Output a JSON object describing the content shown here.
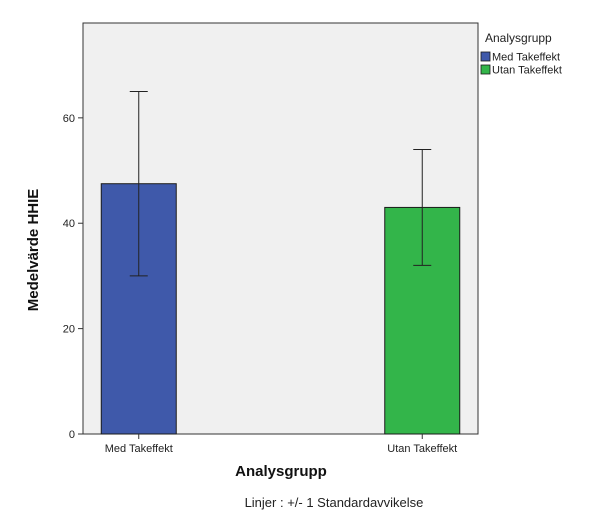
{
  "chart_data": {
    "type": "bar",
    "categories": [
      "Med Takeffekt",
      "Utan Takeffekt"
    ],
    "values": [
      47.5,
      43.0
    ],
    "error_bars": {
      "type": "+/- 1 SD",
      "lower": [
        30.0,
        32.0
      ],
      "upper": [
        65.0,
        54.0
      ]
    },
    "colors": [
      "#3f59aa",
      "#33b54a"
    ],
    "background": "#f0f0f0",
    "xlabel": "Analysgrupp",
    "ylabel": "Medelvärde HHIE",
    "yticks": [
      0,
      20,
      40,
      60
    ],
    "ylim": [
      0,
      78
    ],
    "grid": false,
    "legend": {
      "title": "Analysgrupp",
      "position": "top-right",
      "entries": [
        "Med Takeffekt",
        "Utan Takeffekt"
      ]
    },
    "footnote": "Linjer : +/- 1 Standardavvikelse"
  }
}
